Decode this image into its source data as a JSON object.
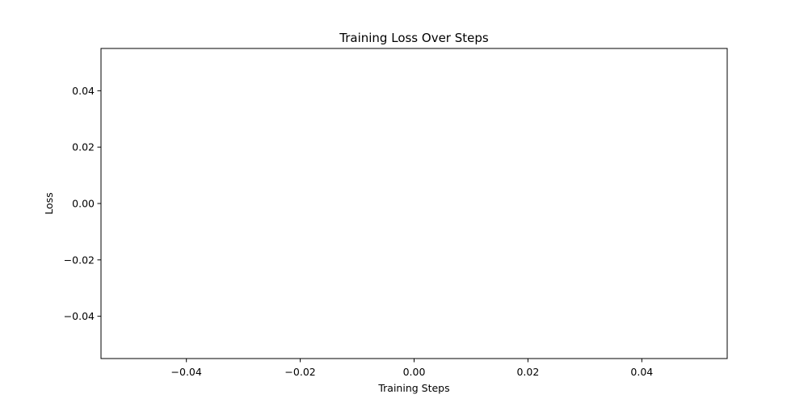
{
  "chart_data": {
    "type": "line",
    "title": "Training Loss Over Steps",
    "xlabel": "Training Steps",
    "ylabel": "Loss",
    "xlim": [
      -0.055,
      0.055
    ],
    "ylim": [
      -0.055,
      0.055
    ],
    "xticks": [
      -0.04,
      -0.02,
      0.0,
      0.02,
      0.04
    ],
    "yticks": [
      -0.04,
      -0.02,
      0.0,
      0.02,
      0.04
    ],
    "xtick_labels": [
      "−0.04",
      "−0.02",
      "0.00",
      "0.02",
      "0.04"
    ],
    "ytick_labels": [
      "−0.04",
      "−0.02",
      "0.00",
      "0.02",
      "0.04"
    ],
    "grid": false,
    "series": [
      {
        "x": [],
        "y": []
      }
    ]
  }
}
